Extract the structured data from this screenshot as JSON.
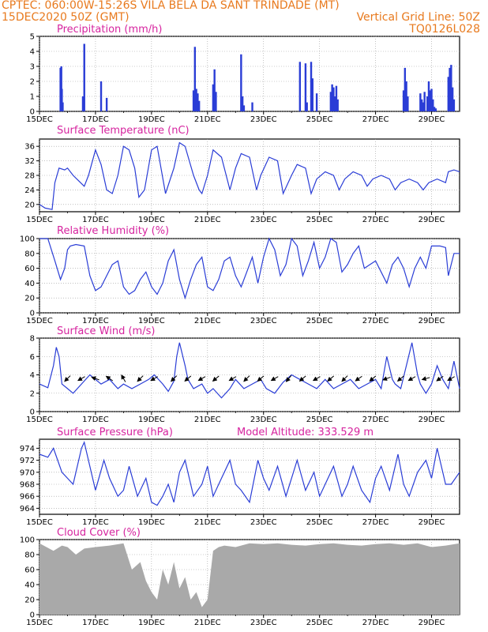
{
  "header": {
    "line1": "CPTEC:   060:00W-15:26S  VILA BELA DA SANT TRINDADE (MT)",
    "line2_left": "15DEC2020 50Z (GMT)",
    "line2_right": "Vertical Grid Line: 50Z",
    "line3_right": "TQ0126L028"
  },
  "colors": {
    "header": "#e87a1e",
    "title": "#d6249f",
    "line": "#2a3dd6",
    "grid": "#9a9a9a",
    "cloud": "#a9a9a9"
  },
  "x_axis": {
    "days": [
      "15DEC",
      "17DEC",
      "19DEC",
      "21DEC",
      "23DEC",
      "25DEC",
      "27DEC",
      "29DEC"
    ],
    "day_offsets": [
      0,
      2,
      4,
      6,
      8,
      10,
      12,
      14
    ],
    "range_days": [
      0,
      15
    ]
  },
  "chart_data": [
    {
      "type": "bar",
      "title": "Precipitation (mm/h)",
      "ylim": [
        0,
        5
      ],
      "yticks": [
        0,
        1,
        2,
        3,
        4,
        5
      ],
      "x": [
        0.75,
        0.78,
        0.8,
        0.83,
        1.55,
        1.6,
        2.2,
        2.4,
        5.5,
        5.55,
        5.6,
        5.65,
        5.7,
        6.2,
        6.25,
        6.3,
        7.2,
        7.25,
        7.3,
        7.6,
        9.3,
        9.5,
        9.55,
        9.7,
        9.75,
        9.9,
        10.4,
        10.45,
        10.5,
        10.55,
        10.6,
        10.65,
        13.0,
        13.05,
        13.1,
        13.15,
        13.6,
        13.65,
        13.7,
        13.75,
        13.85,
        13.9,
        13.95,
        14.0,
        14.05,
        14.1,
        14.15,
        14.6,
        14.65,
        14.7,
        14.75,
        14.8
      ],
      "values": [
        2.9,
        3.0,
        1.5,
        0.6,
        1.0,
        4.5,
        2.0,
        0.9,
        1.4,
        4.3,
        1.5,
        1.2,
        0.7,
        1.8,
        2.8,
        1.3,
        3.8,
        1.0,
        0.4,
        0.6,
        3.3,
        3.2,
        0.6,
        3.3,
        2.2,
        1.2,
        1.3,
        1.8,
        1.6,
        1.0,
        1.7,
        0.8,
        1.4,
        2.9,
        2.0,
        1.0,
        1.2,
        0.8,
        0.6,
        1.3,
        1.0,
        2.0,
        1.4,
        1.5,
        0.8,
        0.3,
        0.2,
        2.3,
        2.9,
        3.1,
        1.6,
        0.8
      ]
    },
    {
      "type": "line",
      "title": "Surface Temperature (nC)",
      "ylim": [
        18,
        38
      ],
      "yticks": [
        20,
        24,
        28,
        32,
        36
      ],
      "x": [
        0,
        0.2,
        0.45,
        0.55,
        0.7,
        0.9,
        1.0,
        1.2,
        1.4,
        1.6,
        1.75,
        2.0,
        2.2,
        2.4,
        2.6,
        2.8,
        3.0,
        3.2,
        3.4,
        3.55,
        3.75,
        4.0,
        4.2,
        4.5,
        4.8,
        5.0,
        5.2,
        5.5,
        5.7,
        5.8,
        6.0,
        6.2,
        6.5,
        6.8,
        7.0,
        7.2,
        7.5,
        7.75,
        7.9,
        8.2,
        8.5,
        8.7,
        9.0,
        9.2,
        9.5,
        9.7,
        9.9,
        10.2,
        10.5,
        10.7,
        10.9,
        11.2,
        11.5,
        11.7,
        11.9,
        12.2,
        12.5,
        12.7,
        12.9,
        13.2,
        13.5,
        13.7,
        13.9,
        14.2,
        14.5,
        14.6,
        14.8,
        15.0
      ],
      "values": [
        20,
        19,
        18.6,
        26,
        30,
        29.5,
        30,
        28,
        26.5,
        25,
        28,
        35,
        31,
        24,
        23,
        28,
        36,
        35,
        30,
        22,
        24,
        35,
        36,
        23,
        30,
        37,
        36,
        28,
        24,
        23,
        28,
        35,
        33,
        24,
        30,
        34,
        33,
        24,
        28,
        33,
        32,
        23,
        28,
        31,
        30,
        23,
        27,
        29,
        28,
        24,
        27,
        29,
        28,
        25,
        27,
        28,
        27,
        24,
        26,
        27,
        26,
        24,
        26,
        27,
        26,
        29,
        29.5,
        29
      ]
    },
    {
      "type": "line",
      "title": "Relative Humidity (%)",
      "ylim": [
        0,
        100
      ],
      "yticks": [
        0,
        20,
        40,
        60,
        80,
        100
      ],
      "x": [
        0,
        0.3,
        0.55,
        0.75,
        0.9,
        1.0,
        1.1,
        1.3,
        1.6,
        1.8,
        2.0,
        2.2,
        2.4,
        2.6,
        2.8,
        3.0,
        3.2,
        3.4,
        3.6,
        3.8,
        4.0,
        4.2,
        4.4,
        4.6,
        4.8,
        5.0,
        5.2,
        5.4,
        5.6,
        5.8,
        6.0,
        6.2,
        6.4,
        6.6,
        6.8,
        7.0,
        7.2,
        7.4,
        7.6,
        7.8,
        8.0,
        8.2,
        8.4,
        8.6,
        8.8,
        9.0,
        9.2,
        9.4,
        9.6,
        9.8,
        10.0,
        10.2,
        10.4,
        10.6,
        10.8,
        11.0,
        11.2,
        11.4,
        11.6,
        11.8,
        12.0,
        12.2,
        12.4,
        12.6,
        12.8,
        13.0,
        13.2,
        13.4,
        13.6,
        13.8,
        14.0,
        14.3,
        14.5,
        14.6,
        14.8,
        15.0
      ],
      "values": [
        100,
        100,
        70,
        45,
        60,
        85,
        90,
        92,
        90,
        50,
        30,
        35,
        50,
        65,
        70,
        35,
        25,
        30,
        45,
        55,
        35,
        25,
        40,
        70,
        85,
        45,
        20,
        45,
        65,
        75,
        35,
        30,
        45,
        70,
        75,
        50,
        35,
        55,
        75,
        40,
        75,
        100,
        85,
        50,
        65,
        100,
        90,
        50,
        70,
        95,
        60,
        75,
        100,
        95,
        55,
        65,
        80,
        90,
        60,
        65,
        70,
        55,
        40,
        65,
        75,
        60,
        35,
        60,
        75,
        60,
        90,
        90,
        88,
        50,
        80,
        80
      ]
    },
    {
      "type": "line",
      "title": "Surface Wind (m/s)",
      "ylim": [
        0,
        8
      ],
      "yticks": [
        0,
        2,
        4,
        6,
        8
      ],
      "x": [
        0,
        0.3,
        0.5,
        0.6,
        0.7,
        0.8,
        1.0,
        1.2,
        1.5,
        1.8,
        2.0,
        2.2,
        2.5,
        2.8,
        3.0,
        3.3,
        3.6,
        3.9,
        4.1,
        4.4,
        4.6,
        4.8,
        4.9,
        5.0,
        5.2,
        5.3,
        5.5,
        5.8,
        6.0,
        6.2,
        6.5,
        6.8,
        7.0,
        7.3,
        7.6,
        7.9,
        8.1,
        8.4,
        8.7,
        9.0,
        9.3,
        9.6,
        9.9,
        10.2,
        10.5,
        10.8,
        11.1,
        11.4,
        11.7,
        12.0,
        12.2,
        12.4,
        12.6,
        12.7,
        12.9,
        13.1,
        13.3,
        13.5,
        13.6,
        13.8,
        14.0,
        14.2,
        14.4,
        14.6,
        14.8,
        15.0
      ],
      "values": [
        3,
        2.6,
        5,
        7,
        6,
        3,
        2.5,
        2,
        3,
        4,
        3.5,
        3,
        3.5,
        2.5,
        3,
        2.5,
        3,
        3.5,
        4,
        3,
        2.2,
        3.3,
        6,
        7.5,
        5,
        3.5,
        2.5,
        3,
        2,
        2.5,
        1.5,
        2.5,
        3.5,
        2.5,
        3,
        3.5,
        2.5,
        2,
        3.2,
        4,
        3.5,
        3,
        2.5,
        3.5,
        2.5,
        3,
        3.5,
        2.5,
        3,
        3.5,
        2.5,
        6,
        3.5,
        3,
        2.5,
        5,
        7.5,
        4,
        3,
        2,
        3,
        5,
        3.5,
        2.5,
        5.5,
        2.5
      ]
    },
    {
      "type": "line",
      "title": "Surface Pressure (hPa)",
      "annotation": "Model Altitude: 333.529  m",
      "ylim": [
        963,
        975.5
      ],
      "yticks": [
        964,
        966,
        968,
        970,
        972,
        974
      ],
      "x": [
        0,
        0.3,
        0.5,
        0.8,
        1.0,
        1.2,
        1.5,
        1.6,
        1.8,
        2.0,
        2.3,
        2.5,
        2.8,
        3.0,
        3.2,
        3.5,
        3.8,
        4.0,
        4.2,
        4.4,
        4.6,
        4.8,
        5.0,
        5.2,
        5.5,
        5.8,
        6.0,
        6.2,
        6.5,
        6.8,
        7.0,
        7.2,
        7.5,
        7.8,
        8.0,
        8.2,
        8.5,
        8.8,
        9.0,
        9.2,
        9.5,
        9.8,
        10.0,
        10.2,
        10.5,
        10.8,
        11.0,
        11.2,
        11.5,
        11.8,
        12.0,
        12.2,
        12.5,
        12.8,
        13.0,
        13.2,
        13.5,
        13.8,
        14.0,
        14.2,
        14.5,
        14.7,
        15.0
      ],
      "values": [
        973,
        972.5,
        974,
        970,
        969,
        968,
        974,
        975,
        971,
        967,
        972,
        969,
        966,
        967,
        971,
        966,
        969,
        965,
        964.5,
        966,
        968,
        965,
        970,
        972,
        966,
        968,
        971,
        966,
        969,
        972,
        968,
        967,
        965,
        972,
        969,
        967,
        971,
        966,
        969,
        972,
        967,
        970,
        966,
        968,
        971,
        966,
        968,
        971,
        967,
        965,
        969,
        971,
        967,
        973,
        968,
        966,
        970,
        972,
        969,
        974,
        968,
        968,
        970
      ]
    },
    {
      "type": "area",
      "title": "Cloud Cover (%)",
      "ylim": [
        0,
        100
      ],
      "yticks": [
        0,
        20,
        40,
        60,
        80,
        100
      ],
      "x": [
        0,
        0.5,
        0.8,
        1.0,
        1.3,
        1.6,
        2.0,
        2.5,
        3.0,
        3.3,
        3.6,
        3.8,
        4.0,
        4.2,
        4.4,
        4.6,
        4.8,
        5.0,
        5.2,
        5.4,
        5.6,
        5.8,
        6.0,
        6.2,
        6.4,
        6.6,
        7.0,
        7.5,
        8.0,
        8.5,
        9.0,
        9.5,
        10.0,
        10.5,
        11.0,
        11.5,
        12.0,
        12.5,
        13.0,
        13.5,
        14.0,
        14.5,
        15.0
      ],
      "values": [
        95,
        85,
        92,
        90,
        80,
        88,
        90,
        92,
        95,
        60,
        70,
        45,
        30,
        20,
        60,
        40,
        70,
        35,
        50,
        20,
        30,
        10,
        20,
        85,
        90,
        92,
        90,
        95,
        94,
        95,
        93,
        92,
        94,
        95,
        93,
        92,
        94,
        95,
        93,
        95,
        90,
        92,
        95
      ]
    }
  ],
  "wind_vectors": [
    {
      "x": 1.0,
      "dir": 135
    },
    {
      "x": 1.5,
      "dir": 150
    },
    {
      "x": 2.0,
      "dir": 200
    },
    {
      "x": 2.5,
      "dir": 215
    },
    {
      "x": 3.0,
      "dir": 240
    },
    {
      "x": 3.6,
      "dir": 135
    },
    {
      "x": 4.1,
      "dir": 150
    },
    {
      "x": 4.8,
      "dir": 135
    },
    {
      "x": 5.3,
      "dir": 140
    },
    {
      "x": 5.8,
      "dir": 150
    },
    {
      "x": 6.3,
      "dir": 140
    },
    {
      "x": 6.9,
      "dir": 150
    },
    {
      "x": 7.4,
      "dir": 135
    },
    {
      "x": 7.9,
      "dir": 140
    },
    {
      "x": 8.4,
      "dir": 150
    },
    {
      "x": 8.9,
      "dir": 130
    },
    {
      "x": 9.4,
      "dir": 140
    },
    {
      "x": 9.9,
      "dir": 150
    },
    {
      "x": 10.4,
      "dir": 140
    },
    {
      "x": 10.9,
      "dir": 135
    },
    {
      "x": 11.4,
      "dir": 145
    },
    {
      "x": 11.9,
      "dir": 140
    },
    {
      "x": 12.4,
      "dir": 160
    },
    {
      "x": 12.9,
      "dir": 140
    },
    {
      "x": 13.3,
      "dir": 150
    },
    {
      "x": 13.8,
      "dir": 165
    },
    {
      "x": 14.3,
      "dir": 145
    },
    {
      "x": 14.7,
      "dir": 150
    }
  ]
}
